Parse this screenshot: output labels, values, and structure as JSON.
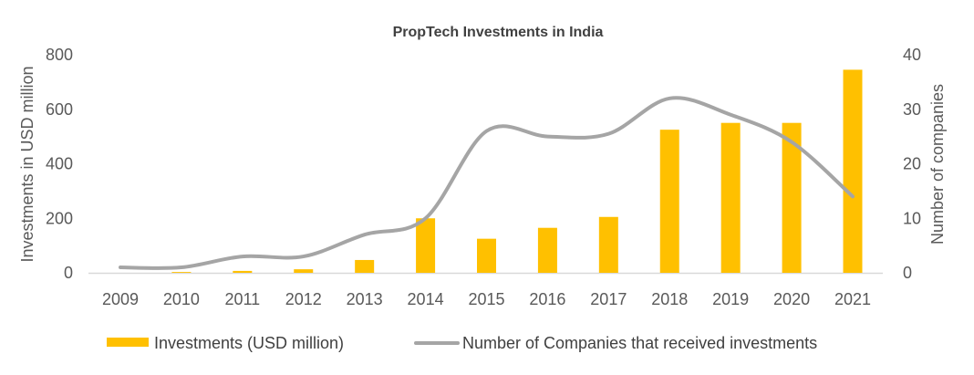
{
  "chart_data": {
    "type": "bar+line",
    "title": "PropTech Investments in India",
    "categories": [
      "2009",
      "2010",
      "2011",
      "2012",
      "2013",
      "2014",
      "2015",
      "2016",
      "2017",
      "2018",
      "2019",
      "2020",
      "2021"
    ],
    "series": [
      {
        "name": "Investments (USD million)",
        "type": "bar",
        "axis": "left",
        "color": "#FFC000",
        "values": [
          0,
          3,
          7,
          13,
          47,
          200,
          125,
          165,
          205,
          525,
          550,
          550,
          745
        ]
      },
      {
        "name": "Number of Companies that received investments",
        "type": "line",
        "axis": "right",
        "color": "#A5A5A5",
        "smooth": true,
        "values": [
          1,
          1,
          3,
          3,
          7,
          10,
          26,
          25,
          25.5,
          32,
          29,
          24,
          14
        ]
      }
    ],
    "ylabel": "Investments in USD million",
    "ylim": [
      0,
      800
    ],
    "yticks": [
      "0",
      "200",
      "400",
      "600",
      "800"
    ],
    "y2label": "Number of companies",
    "y2lim": [
      0,
      40
    ],
    "y2ticks": [
      "0",
      "10",
      "20",
      "30",
      "40"
    ],
    "grid": false,
    "legend": "bottom"
  }
}
